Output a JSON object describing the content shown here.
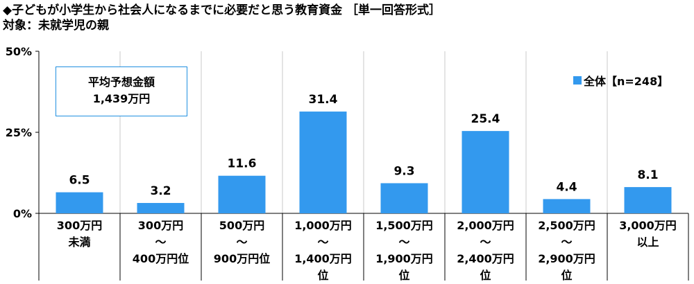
{
  "header": {
    "title": "◆子どもが小学生から社会人になるまでに必要だと思う教育資金 ［単一回答形式］",
    "subtitle": "対象：未就学児の親"
  },
  "average_box": {
    "label": "平均予想金額",
    "value": "1,439万円"
  },
  "chart_data": {
    "type": "bar",
    "categories": [
      [
        "300万円",
        "未満"
      ],
      [
        "300万円",
        "～",
        "400万円位"
      ],
      [
        "500万円",
        "～",
        "900万円位"
      ],
      [
        "1,000万円",
        "～",
        "1,400万円",
        "位"
      ],
      [
        "1,500万円",
        "～",
        "1,900万円",
        "位"
      ],
      [
        "2,000万円",
        "～",
        "2,400万円",
        "位"
      ],
      [
        "2,500万円",
        "～",
        "2,900万円",
        "位"
      ],
      [
        "3,000万円",
        "以上"
      ]
    ],
    "series": [
      {
        "name": "全体【n=248】",
        "values": [
          6.5,
          3.2,
          11.6,
          31.4,
          9.3,
          25.4,
          4.4,
          8.1
        ],
        "color": "#3399ee"
      }
    ],
    "value_labels": [
      "6.5",
      "3.2",
      "11.6",
      "31.4",
      "9.3",
      "25.4",
      "4.4",
      "8.1"
    ],
    "yticks": [
      {
        "value": 0,
        "label": "0%"
      },
      {
        "value": 25,
        "label": "25%"
      },
      {
        "value": 50,
        "label": "50%"
      }
    ],
    "ylim": [
      0,
      50
    ],
    "grid": "vertical separators",
    "legend": "top-right"
  }
}
